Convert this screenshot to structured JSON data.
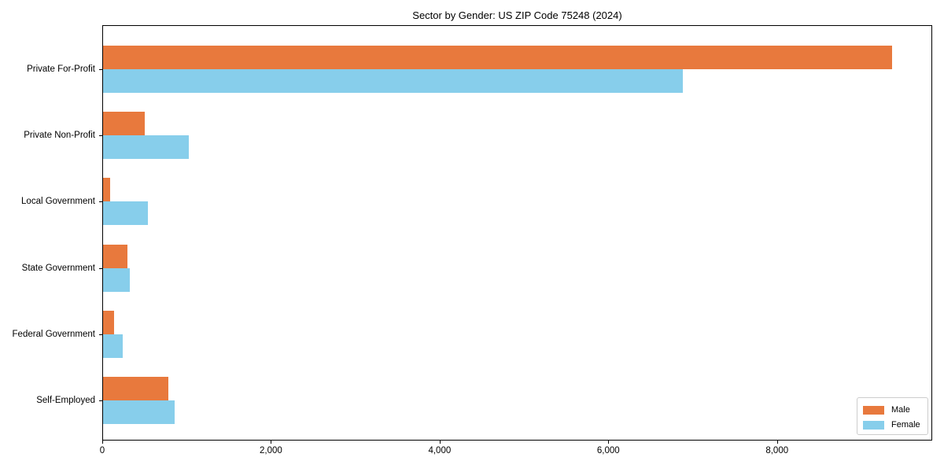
{
  "chart_data": {
    "type": "bar",
    "orientation": "horizontal",
    "title": "Sector by Gender: US ZIP Code 75248 (2024)",
    "categories": [
      "Private For-Profit",
      "Private Non-Profit",
      "Local Government",
      "State Government",
      "Federal Government",
      "Self-Employed"
    ],
    "series": [
      {
        "name": "Male",
        "color": "#e8793d",
        "values": [
          9370,
          495,
          85,
          290,
          130,
          775
        ]
      },
      {
        "name": "Female",
        "color": "#87ceeb",
        "values": [
          6890,
          1015,
          530,
          315,
          235,
          850
        ]
      }
    ],
    "xlabel": "",
    "ylabel": "",
    "xlim": [
      0,
      9840
    ],
    "xticks": {
      "values": [
        0,
        2000,
        4000,
        6000,
        8000
      ],
      "labels": [
        "0",
        "2,000",
        "4,000",
        "6,000",
        "8,000"
      ]
    },
    "grid": false,
    "legend": {
      "position": "lower right",
      "entries": [
        "Male",
        "Female"
      ]
    }
  }
}
